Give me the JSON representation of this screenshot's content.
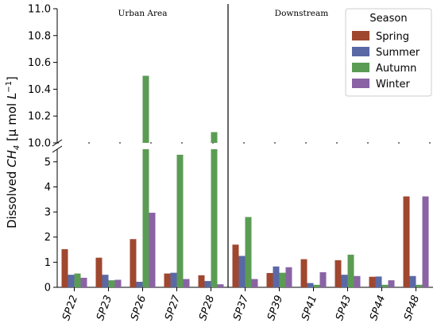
{
  "chart_data": {
    "type": "bar",
    "categories": [
      "SP22",
      "SP23",
      "SP26",
      "SP27",
      "SP28",
      "SP37",
      "SP39",
      "SP41",
      "SP43",
      "SP44",
      "SP48"
    ],
    "series": [
      {
        "name": "Spring",
        "color": "#a0472f",
        "values": [
          1.52,
          1.18,
          1.92,
          0.55,
          0.48,
          1.7,
          0.57,
          1.12,
          1.08,
          0.42,
          3.62
        ]
      },
      {
        "name": "Summer",
        "color": "#5a68a6",
        "values": [
          0.5,
          0.5,
          0.22,
          0.58,
          0.25,
          1.25,
          0.83,
          0.17,
          0.5,
          0.43,
          0.45
        ]
      },
      {
        "name": "Autumn",
        "color": "#5b9c54",
        "values": [
          0.55,
          0.28,
          10.5,
          5.28,
          10.08,
          2.8,
          0.58,
          0.1,
          1.3,
          0.1,
          0.1
        ]
      },
      {
        "name": "Winter",
        "color": "#8a63a4",
        "values": [
          0.38,
          0.3,
          2.97,
          0.33,
          0.12,
          0.33,
          0.8,
          0.6,
          0.45,
          0.28,
          3.62
        ]
      }
    ],
    "ylabel_prefix": "Dissolved ",
    "ylabel_species": "CH",
    "ylabel_species_sub": "4",
    "ylabel_unit": " [μ mol ",
    "ylabel_unit_L": "L",
    "ylabel_unit_exp": "−1",
    "ylabel_unit_close": "]",
    "y_broken": true,
    "ylim_lower": [
      0,
      5.5
    ],
    "ylim_upper": [
      10.0,
      11.0
    ],
    "yticks_lower": [
      "0",
      "1",
      "2",
      "3",
      "4",
      "5"
    ],
    "yticks_upper": [
      "10.0",
      "10.2",
      "10.4",
      "10.6",
      "10.8",
      "11.0"
    ],
    "regions": [
      "Urban Area",
      "Downstream"
    ],
    "legend": {
      "title": "Season",
      "placement": "top-right"
    },
    "grid": false
  }
}
